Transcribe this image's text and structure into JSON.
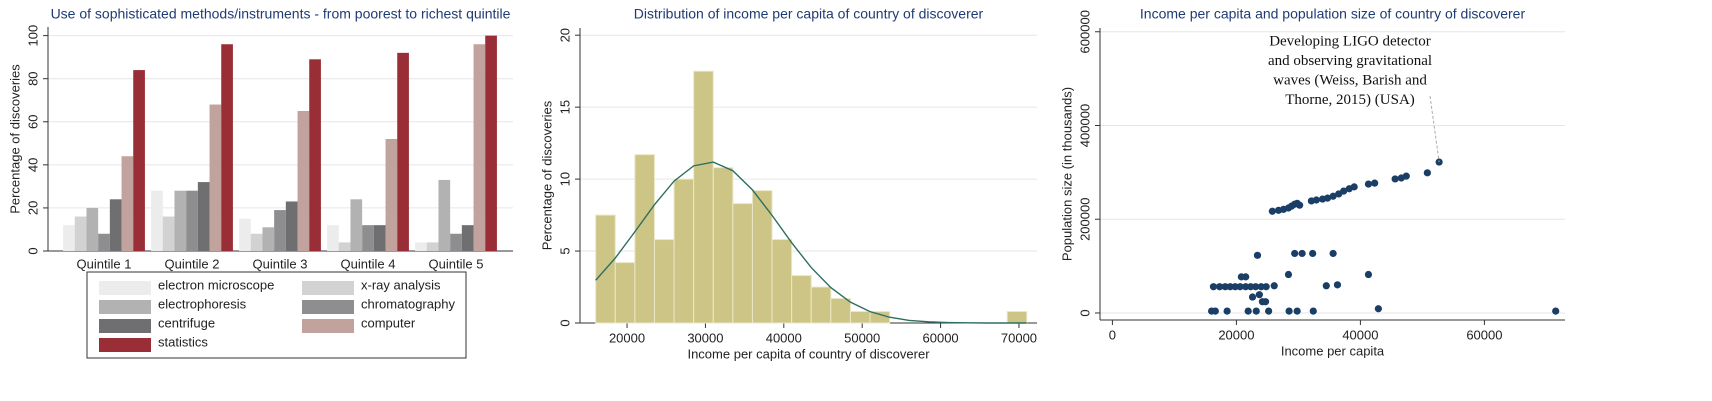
{
  "chart_data": [
    {
      "type": "groupedbar",
      "title": "Use of sophisticated methods/instruments - from poorest to richest quintile",
      "y_label": "Percentage of discoveries",
      "categories": [
        "Quintile 1",
        "Quintile 2",
        "Quintile 3",
        "Quintile 4",
        "Quintile 5"
      ],
      "series": [
        {
          "name": "electron microscope",
          "color": "#ececec",
          "values": [
            12,
            28,
            15,
            12,
            4
          ]
        },
        {
          "name": "x-ray analysis",
          "color": "#d2d2d2",
          "values": [
            16,
            16,
            8,
            4,
            4
          ]
        },
        {
          "name": "electrophoresis",
          "color": "#b2b2b2",
          "values": [
            20,
            28,
            11,
            24,
            33
          ]
        },
        {
          "name": "chromatography",
          "color": "#8e8e90",
          "values": [
            8,
            28,
            19,
            12,
            8
          ]
        },
        {
          "name": "centrifuge",
          "color": "#6f6f72",
          "values": [
            24,
            32,
            23,
            12,
            12
          ]
        },
        {
          "name": "computer",
          "color": "#c1a29d",
          "values": [
            44,
            68,
            65,
            52,
            96
          ]
        },
        {
          "name": "statistics",
          "color": "#9a2e36",
          "values": [
            84,
            96,
            89,
            92,
            100
          ]
        }
      ],
      "ylim": [
        0,
        104
      ],
      "yticks": [
        0,
        20,
        40,
        60,
        80,
        100
      ],
      "grid": true,
      "legend": {
        "position": "bottom",
        "columns": 2
      }
    },
    {
      "type": "histogram",
      "title": "Distribution of income per capita of country of discoverer",
      "x_label": "Income per capita of country of discoverer",
      "y_label": "Percentage of discoveries",
      "bins": [
        16000,
        18500,
        21000,
        23500,
        26000,
        28500,
        31000,
        33500,
        36000,
        38500,
        41000,
        43500,
        46000,
        48500,
        51000,
        53500,
        56000,
        58500,
        61000,
        63500,
        66000,
        68500,
        71000
      ],
      "values": [
        7.5,
        4.2,
        11.7,
        5.8,
        10,
        17.5,
        10.8,
        8.3,
        9.2,
        5.8,
        3.3,
        2.5,
        1.7,
        0.8,
        0.8,
        0,
        0,
        0,
        0,
        0,
        0,
        0.8
      ],
      "color": "#cdc586",
      "curve": {
        "color": "#2e6e62",
        "x": [
          16000,
          18500,
          21000,
          23500,
          26000,
          28500,
          31000,
          33500,
          36000,
          38500,
          41000,
          43500,
          46000,
          48500,
          51000,
          53500,
          56000,
          58500,
          61000,
          63500,
          66000,
          68500,
          71000
        ],
        "values": [
          2.97,
          4.51,
          6.34,
          8.22,
          9.86,
          10.92,
          11.18,
          10.58,
          9.25,
          7.48,
          5.58,
          3.85,
          2.46,
          1.45,
          0.79,
          0.4,
          0.18,
          0.08,
          0.03,
          0.01,
          0,
          0,
          0
        ]
      },
      "xlim": [
        14000,
        72300
      ],
      "xticks": [
        20000,
        30000,
        40000,
        50000,
        60000,
        70000
      ],
      "ylim": [
        0,
        20.5
      ],
      "yticks": [
        0,
        5,
        10,
        15,
        20
      ],
      "grid": true
    },
    {
      "type": "scatter",
      "title": "Income per capita and population size of country of discoverer",
      "x_label": "Income per capita",
      "y_label": "Population size  (in thousands)",
      "color": "#1b3e66",
      "x": [
        25800,
        26800,
        27600,
        28400,
        28900,
        29400,
        29800,
        30200,
        32100,
        32900,
        33900,
        34700,
        35600,
        36500,
        37300,
        38200,
        39000,
        41300,
        42300,
        45600,
        46600,
        47400,
        50800,
        16300,
        17300,
        18200,
        19000,
        19800,
        20600,
        21500,
        22300,
        23100,
        24000,
        24800,
        26100,
        20800,
        21500,
        23400,
        28400,
        29400,
        30600,
        32300,
        35600,
        34500,
        36300,
        41300,
        42900,
        16000,
        16600,
        18500,
        21900,
        23200,
        24200,
        24700,
        25200,
        23700,
        22600,
        28500,
        29800,
        32400,
        71500,
        52700
      ],
      "values": [
        217000,
        219000,
        221000,
        224000,
        228000,
        232000,
        234000,
        230000,
        239000,
        241000,
        243000,
        245000,
        249000,
        254000,
        260000,
        265000,
        269000,
        275000,
        277000,
        286000,
        288000,
        292000,
        299000,
        56000,
        56000,
        56000,
        56000,
        56000,
        56000,
        56000,
        56000,
        56000,
        56000,
        56000,
        58000,
        77000,
        77000,
        123000,
        82000,
        127000,
        127000,
        127000,
        127000,
        58000,
        60000,
        82000,
        9000,
        4000,
        4000,
        4000,
        4000,
        4000,
        24000,
        24000,
        4000,
        39000,
        34000,
        4000,
        4000,
        4000,
        4000,
        322000
      ],
      "annotation": {
        "lines": [
          "Developing LIGO detector",
          "and observing gravitational",
          "waves (Weiss, Barish and",
          "Thorne, 2015) (USA)"
        ]
      },
      "xlim": [
        -2000,
        73000
      ],
      "xticks": [
        0,
        20000,
        40000,
        60000
      ],
      "ylim": [
        -15000,
        608000
      ],
      "yticks": [
        0,
        200000,
        400000,
        600000
      ],
      "grid": true
    }
  ]
}
